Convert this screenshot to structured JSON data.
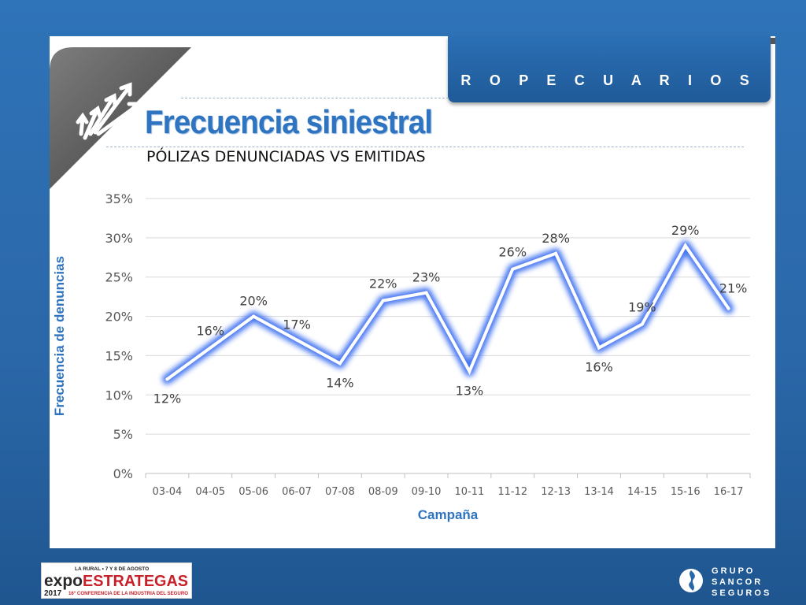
{
  "header": {
    "banner": "S E G U R O S   A G R O P E C U A R I O S"
  },
  "slide": {
    "title": "Frecuencia siniestral",
    "subtitle": "PÓLIZAS DENUNCIADAS VS EMITIDAS"
  },
  "chart_data": {
    "type": "line",
    "categories": [
      "03-04",
      "04-05",
      "05-06",
      "06-07",
      "07-08",
      "08-09",
      "09-10",
      "10-11",
      "11-12",
      "12-13",
      "13-14",
      "14-15",
      "15-16",
      "16-17"
    ],
    "values": [
      12,
      16,
      20,
      17,
      14,
      22,
      23,
      13,
      26,
      28,
      16,
      19,
      29,
      21
    ],
    "data_labels": [
      "12%",
      "16%",
      "20%",
      "17%",
      "14%",
      "22%",
      "23%",
      "13%",
      "26%",
      "28%",
      "16%",
      "19%",
      "29%",
      "21%"
    ],
    "xlabel": "Campaña",
    "ylabel": "Frecuencia de denuncias",
    "ylim": [
      0,
      35
    ],
    "yticks": [
      0,
      5,
      10,
      15,
      20,
      25,
      30,
      35
    ],
    "ytick_labels": [
      "0%",
      "5%",
      "10%",
      "15%",
      "20%",
      "25%",
      "30%",
      "35%"
    ],
    "grid": true,
    "line_color": "#ffffff",
    "glow_color": "#3d6ff0"
  },
  "footer": {
    "left_logo": {
      "top_line": "LA RURAL • 7 Y 8 DE AGOSTO",
      "brand_a": "expo",
      "brand_b": "ESTRATEGAS",
      "year": "2017",
      "tagline": "16° CONFERENCIA DE LA INDUSTRIA DEL SEGURO"
    },
    "right_logo": {
      "lines": [
        "G R U P O",
        "S A N C O R",
        "S E G U R O S"
      ]
    }
  },
  "colors": {
    "title": "#2f74c0",
    "axis_title": "#2f74c0",
    "background": "#2f73b8"
  }
}
